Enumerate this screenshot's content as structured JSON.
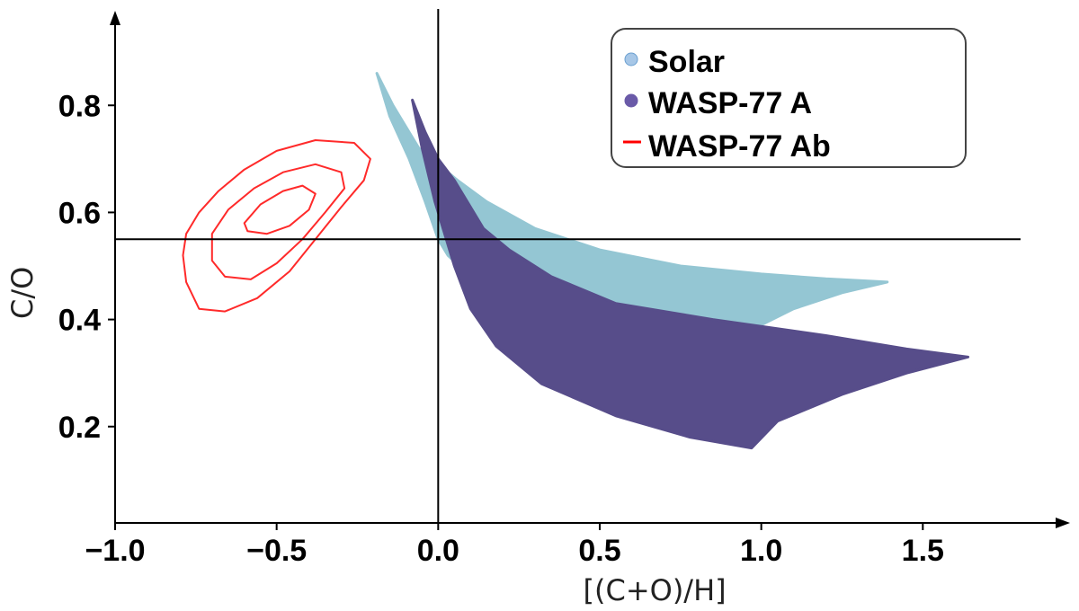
{
  "chart_data": {
    "type": "scatter",
    "title": "",
    "xlabel": "[(C+O)/H]",
    "ylabel": "C/O",
    "xlim": [
      -1.0,
      1.95
    ],
    "ylim": [
      0.02,
      0.98
    ],
    "xticks": [
      -1.0,
      -0.5,
      0.0,
      0.5,
      1.0,
      1.5
    ],
    "xtick_labels": [
      "−1.0",
      "−0.5",
      "0.0",
      "0.5",
      "1.0",
      "1.5"
    ],
    "yticks": [
      0.2,
      0.4,
      0.6,
      0.8
    ],
    "ytick_labels": [
      "0.2",
      "0.4",
      "0.6",
      "0.8"
    ],
    "reference_lines": {
      "vertical_x": 0.0,
      "horizontal_y": 0.55
    },
    "grid": false,
    "legend_position": "top-right",
    "series": [
      {
        "name": "Solar",
        "kind": "scatter-cloud",
        "color": "#94c6d3",
        "legend_marker": "#a7c7e7",
        "polygon": [
          [
            -0.19,
            0.86
          ],
          [
            -0.14,
            0.8
          ],
          [
            -0.06,
            0.72
          ],
          [
            0.0,
            0.69
          ],
          [
            0.06,
            0.66
          ],
          [
            0.15,
            0.62
          ],
          [
            0.3,
            0.57
          ],
          [
            0.5,
            0.53
          ],
          [
            0.75,
            0.5
          ],
          [
            1.0,
            0.485
          ],
          [
            1.2,
            0.476
          ],
          [
            1.39,
            0.47
          ],
          [
            1.25,
            0.45
          ],
          [
            1.1,
            0.42
          ],
          [
            0.95,
            0.375
          ],
          [
            0.7,
            0.385
          ],
          [
            0.45,
            0.41
          ],
          [
            0.2,
            0.44
          ],
          [
            0.1,
            0.48
          ],
          [
            0.03,
            0.52
          ],
          [
            0.0,
            0.55
          ],
          [
            -0.04,
            0.62
          ],
          [
            -0.09,
            0.7
          ],
          [
            -0.15,
            0.78
          ]
        ]
      },
      {
        "name": "WASP-77 A",
        "kind": "scatter-cloud",
        "color": "#574d8a",
        "legend_marker": "#6a5aa8",
        "polygon": [
          [
            -0.08,
            0.81
          ],
          [
            -0.04,
            0.75
          ],
          [
            0.0,
            0.7
          ],
          [
            0.05,
            0.66
          ],
          [
            0.09,
            0.62
          ],
          [
            0.14,
            0.57
          ],
          [
            0.22,
            0.53
          ],
          [
            0.35,
            0.48
          ],
          [
            0.55,
            0.43
          ],
          [
            0.85,
            0.4
          ],
          [
            1.2,
            0.37
          ],
          [
            1.45,
            0.345
          ],
          [
            1.64,
            0.33
          ],
          [
            1.45,
            0.3
          ],
          [
            1.25,
            0.26
          ],
          [
            1.05,
            0.21
          ],
          [
            0.97,
            0.16
          ],
          [
            0.78,
            0.18
          ],
          [
            0.55,
            0.22
          ],
          [
            0.32,
            0.28
          ],
          [
            0.18,
            0.35
          ],
          [
            0.1,
            0.42
          ],
          [
            0.05,
            0.5
          ],
          [
            0.02,
            0.56
          ],
          [
            -0.01,
            0.62
          ],
          [
            -0.05,
            0.72
          ]
        ]
      },
      {
        "name": "WASP-77 Ab",
        "kind": "contours",
        "color": "#ff2a2a",
        "legend_marker": "#ff0000",
        "contours": [
          [
            [
              -0.78,
              0.56
            ],
            [
              -0.74,
              0.6
            ],
            [
              -0.68,
              0.64
            ],
            [
              -0.6,
              0.68
            ],
            [
              -0.5,
              0.715
            ],
            [
              -0.38,
              0.735
            ],
            [
              -0.26,
              0.73
            ],
            [
              -0.21,
              0.7
            ],
            [
              -0.23,
              0.66
            ],
            [
              -0.3,
              0.61
            ],
            [
              -0.38,
              0.55
            ],
            [
              -0.46,
              0.49
            ],
            [
              -0.56,
              0.44
            ],
            [
              -0.66,
              0.415
            ],
            [
              -0.74,
              0.42
            ],
            [
              -0.78,
              0.47
            ],
            [
              -0.79,
              0.52
            ]
          ],
          [
            [
              -0.7,
              0.56
            ],
            [
              -0.65,
              0.605
            ],
            [
              -0.57,
              0.645
            ],
            [
              -0.48,
              0.675
            ],
            [
              -0.38,
              0.69
            ],
            [
              -0.3,
              0.675
            ],
            [
              -0.29,
              0.645
            ],
            [
              -0.35,
              0.6
            ],
            [
              -0.42,
              0.55
            ],
            [
              -0.5,
              0.505
            ],
            [
              -0.58,
              0.475
            ],
            [
              -0.66,
              0.48
            ],
            [
              -0.7,
              0.51
            ]
          ],
          [
            [
              -0.6,
              0.58
            ],
            [
              -0.55,
              0.615
            ],
            [
              -0.48,
              0.64
            ],
            [
              -0.42,
              0.65
            ],
            [
              -0.38,
              0.635
            ],
            [
              -0.4,
              0.605
            ],
            [
              -0.46,
              0.575
            ],
            [
              -0.53,
              0.56
            ],
            [
              -0.59,
              0.565
            ]
          ]
        ]
      }
    ]
  }
}
